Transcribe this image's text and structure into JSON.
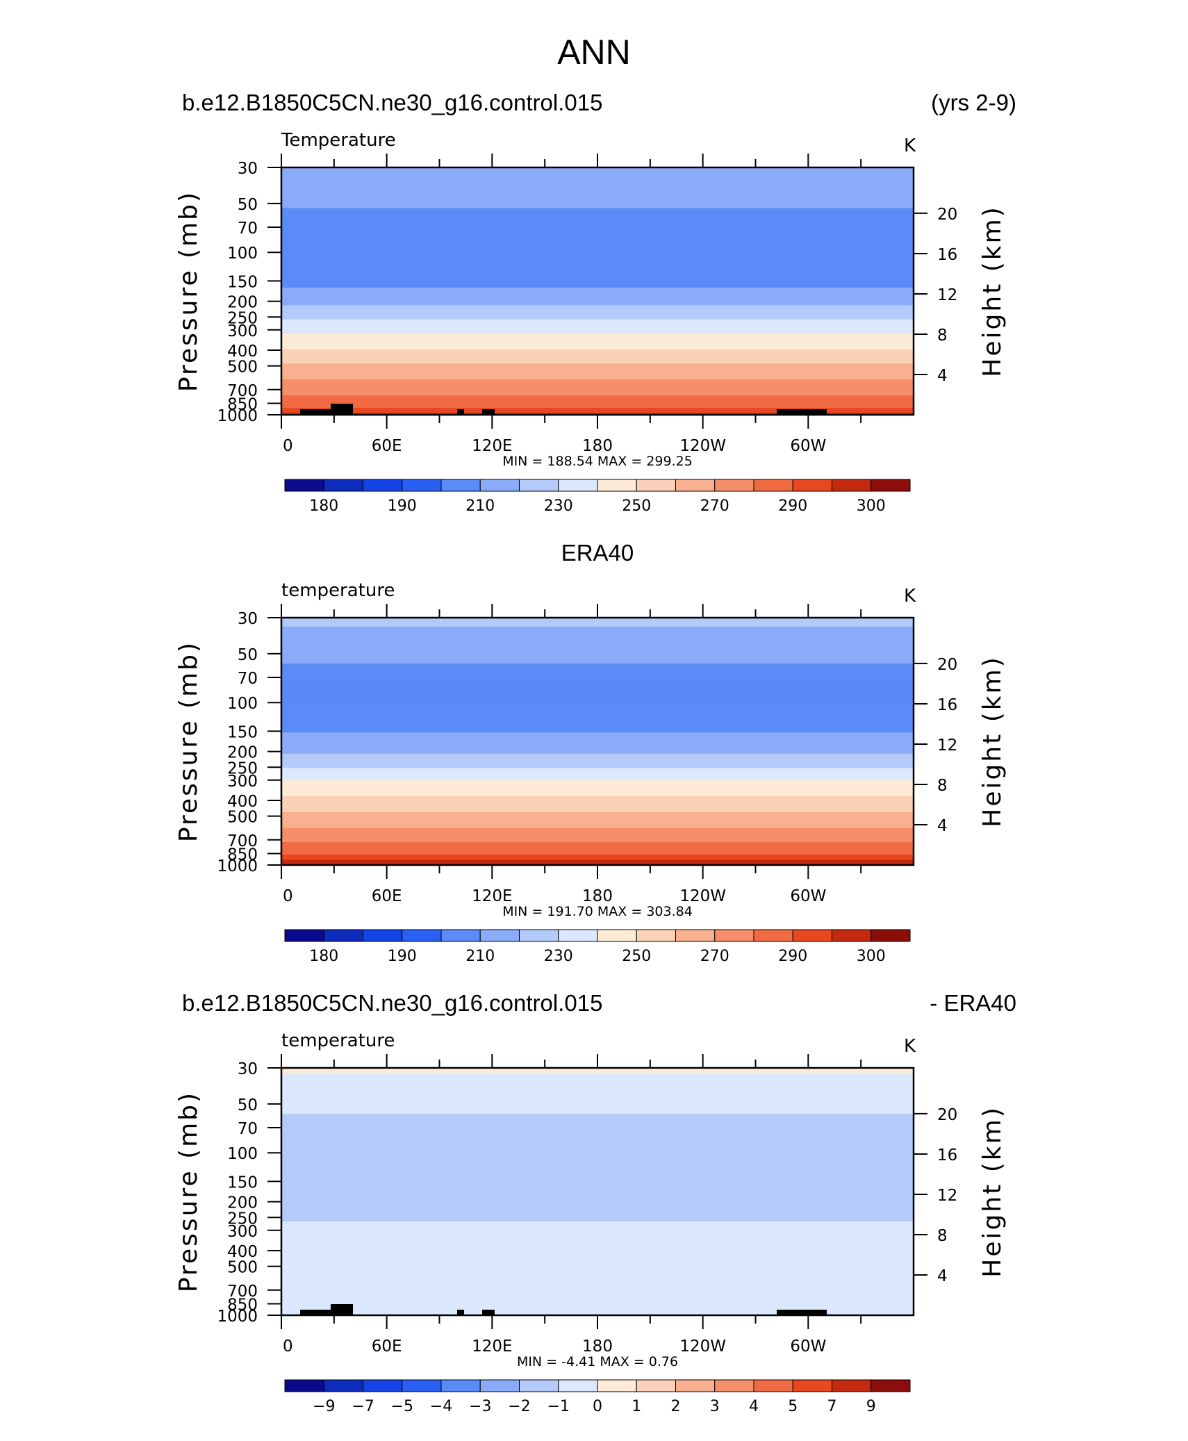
{
  "page_title": "ANN",
  "chart_data": [
    {
      "type": "heatmap",
      "header_left": "b.e12.B1850C5CN.ne30_g16.control.015",
      "header_right": "(yrs 2-9)",
      "title": "Temperature",
      "units": "K",
      "ylabel": "Pressure (mb)",
      "ylabel_right": "Height (km)",
      "stats": "MIN =  188.54   MAX =  299.25",
      "colorbar_labels": [
        "180",
        "190",
        "210",
        "230",
        "250",
        "270",
        "290",
        "300"
      ],
      "colorbar_colors": [
        "#0c0a8c",
        "#0d2bbd",
        "#1444e6",
        "#2a5ff5",
        "#5b8bf7",
        "#8aacf8",
        "#b3cafb",
        "#dbe8fd",
        "#fdebd8",
        "#fbd1b7",
        "#f8b091",
        "#f58e69",
        "#f06b43",
        "#e84820",
        "#c42a10",
        "#8c0d0a"
      ],
      "profile_K": [
        {
          "p": 30,
          "v": 220
        },
        {
          "p": 50,
          "v": 212
        },
        {
          "p": 70,
          "v": 203
        },
        {
          "p": 100,
          "v": 200
        },
        {
          "p": 150,
          "v": 207
        },
        {
          "p": 200,
          "v": 217
        },
        {
          "p": 250,
          "v": 228
        },
        {
          "p": 300,
          "v": 238
        },
        {
          "p": 400,
          "v": 251
        },
        {
          "p": 500,
          "v": 261
        },
        {
          "p": 700,
          "v": 276
        },
        {
          "p": 850,
          "v": 286
        },
        {
          "p": 1000,
          "v": 297
        }
      ]
    },
    {
      "type": "heatmap",
      "header_center": "ERA40",
      "title": "temperature",
      "units": "K",
      "ylabel": "Pressure (mb)",
      "ylabel_right": "Height (km)",
      "stats": "MIN =  191.70   MAX =  303.84",
      "colorbar_labels": [
        "180",
        "190",
        "210",
        "230",
        "250",
        "270",
        "290",
        "300"
      ],
      "colorbar_colors": [
        "#0c0a8c",
        "#0d2bbd",
        "#1444e6",
        "#2a5ff5",
        "#5b8bf7",
        "#8aacf8",
        "#b3cafb",
        "#dbe8fd",
        "#fdebd8",
        "#fbd1b7",
        "#f8b091",
        "#f58e69",
        "#f06b43",
        "#e84820",
        "#c42a10",
        "#8c0d0a"
      ],
      "profile_K": [
        {
          "p": 30,
          "v": 222
        },
        {
          "p": 50,
          "v": 214
        },
        {
          "p": 70,
          "v": 205
        },
        {
          "p": 100,
          "v": 203
        },
        {
          "p": 150,
          "v": 209
        },
        {
          "p": 200,
          "v": 219
        },
        {
          "p": 250,
          "v": 230
        },
        {
          "p": 300,
          "v": 240
        },
        {
          "p": 400,
          "v": 253
        },
        {
          "p": 500,
          "v": 263
        },
        {
          "p": 700,
          "v": 278
        },
        {
          "p": 850,
          "v": 289
        },
        {
          "p": 1000,
          "v": 300
        }
      ]
    },
    {
      "type": "heatmap",
      "header_left": "b.e12.B1850C5CN.ne30_g16.control.015",
      "header_right": "- ERA40",
      "title": "temperature",
      "units": "K",
      "ylabel": "Pressure (mb)",
      "ylabel_right": "Height (km)",
      "stats": "MIN =   -4.41   MAX =    0.76",
      "colorbar_labels": [
        "−9",
        "−7",
        "−5",
        "−4",
        "−3",
        "−2",
        "−1",
        "0",
        "1",
        "2",
        "3",
        "4",
        "5",
        "7",
        "9"
      ],
      "colorbar_colors": [
        "#0c0a8c",
        "#0d2bbd",
        "#1444e6",
        "#2a5ff5",
        "#5b8bf7",
        "#8aacf8",
        "#b3cafb",
        "#dbe8fd",
        "#fdebd8",
        "#fbd1b7",
        "#f8b091",
        "#f58e69",
        "#f06b43",
        "#e84820",
        "#c42a10",
        "#8c0d0a"
      ],
      "profile_K": [
        {
          "p": 30,
          "v": -0.9
        },
        {
          "p": 50,
          "v": -1.6
        },
        {
          "p": 70,
          "v": -2.6
        },
        {
          "p": 100,
          "v": -2.4
        },
        {
          "p": 150,
          "v": -2.9
        },
        {
          "p": 200,
          "v": -2.7
        },
        {
          "p": 250,
          "v": -2.1
        },
        {
          "p": 300,
          "v": -1.8
        },
        {
          "p": 400,
          "v": -1.5
        },
        {
          "p": 500,
          "v": -1.3
        },
        {
          "p": 700,
          "v": -1.4
        },
        {
          "p": 850,
          "v": -1.2
        },
        {
          "p": 1000,
          "v": -1.1
        }
      ]
    }
  ],
  "axis": {
    "x_ticks": [
      "0",
      "60E",
      "120E",
      "180",
      "120W",
      "60W"
    ],
    "y_ticks": [
      "30",
      "50",
      "70",
      "100",
      "150",
      "200",
      "250",
      "300",
      "400",
      "500",
      "700",
      "850",
      "1000"
    ],
    "y2_ticks": [
      "20",
      "16",
      "12",
      "8",
      "4"
    ]
  }
}
